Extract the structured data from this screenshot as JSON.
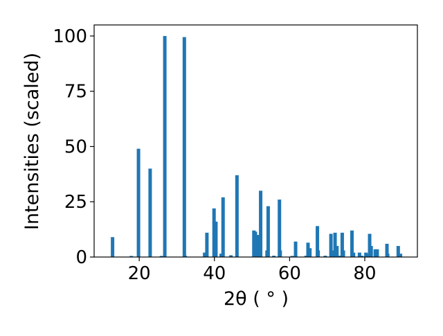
{
  "chart_data": {
    "type": "bar",
    "xlabel": "2θ ( ° )",
    "ylabel": "Intensities (scaled)",
    "xlim": [
      8,
      94
    ],
    "ylim": [
      0,
      105
    ],
    "xticks": [
      20,
      40,
      60,
      80
    ],
    "yticks": [
      0,
      25,
      50,
      75,
      100
    ],
    "xtick_labels": [
      "20",
      "40",
      "60",
      "80"
    ],
    "ytick_labels": [
      "0",
      "25",
      "50",
      "75",
      "100"
    ],
    "bar_color": "#1f77b4",
    "grid": false,
    "x": [
      12.9,
      17.9,
      19.8,
      22.9,
      25.9,
      26.8,
      32.0,
      32.2,
      37.4,
      38.0,
      39.9,
      40.4,
      41.8,
      42.3,
      44.4,
      46.0,
      50.5,
      50.9,
      51.6,
      52.3,
      54.0,
      54.3,
      55.8,
      57.3,
      57.5,
      60.7,
      61.6,
      64.4,
      64.9,
      65.4,
      67.4,
      67.6,
      69.5,
      71.0,
      71.4,
      72.1,
      72.6,
      73.5,
      74.0,
      74.3,
      76.6,
      77.0,
      78.6,
      79.2,
      80.3,
      80.8,
      81.3,
      81.7,
      82.8,
      83.3,
      85.9,
      86.1,
      88.9,
      89.5
    ],
    "values": [
      9,
      0.5,
      49,
      40,
      0.5,
      100,
      99.5,
      0.6,
      2,
      11,
      22,
      16,
      1.5,
      27,
      0.8,
      37,
      12,
      11.5,
      10,
      30,
      3,
      23,
      0.6,
      26,
      3,
      0.5,
      7,
      0.6,
      6.5,
      4,
      14,
      3,
      0.6,
      10.5,
      3,
      11,
      5,
      0.6,
      11,
      3,
      12,
      2,
      2,
      0.6,
      2,
      1.5,
      10.5,
      5,
      3.5,
      3.5,
      6,
      1.5,
      5,
      1.5
    ]
  }
}
